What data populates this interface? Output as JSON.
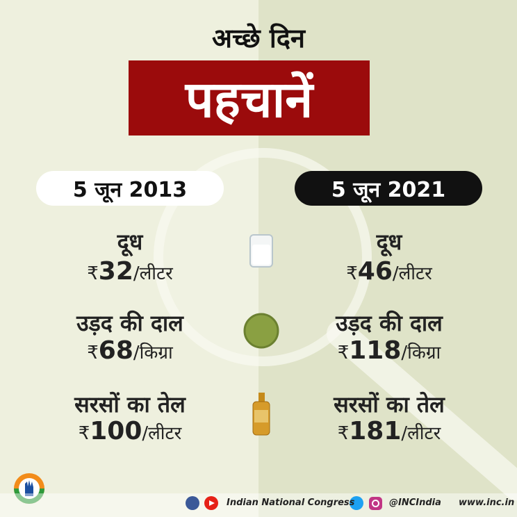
{
  "header": {
    "title": "अच्छे दिन",
    "highlight": "पहचानें"
  },
  "columns": [
    {
      "date": "5 जून 2013",
      "items": [
        {
          "name": "दूध",
          "currency": "₹",
          "amount": 32,
          "unit": "/लीटर"
        },
        {
          "name": "उड़द की दाल",
          "currency": "₹",
          "amount": 68,
          "unit": "/किग्रा"
        },
        {
          "name": "सरसों का तेल",
          "currency": "₹",
          "amount": 100,
          "unit": "/लीटर"
        }
      ]
    },
    {
      "date": "5 जून 2021",
      "items": [
        {
          "name": "दूध",
          "currency": "₹",
          "amount": 46,
          "unit": "/लीटर"
        },
        {
          "name": "उड़द की दाल",
          "currency": "₹",
          "amount": 118,
          "unit": "/किग्रा"
        },
        {
          "name": "सरसों का तेल",
          "currency": "₹",
          "amount": 181,
          "unit": "/लीटर"
        }
      ]
    }
  ],
  "footer": {
    "organization": "Indian National Congress",
    "handle": "@INCIndia",
    "website": "www.inc.in"
  }
}
